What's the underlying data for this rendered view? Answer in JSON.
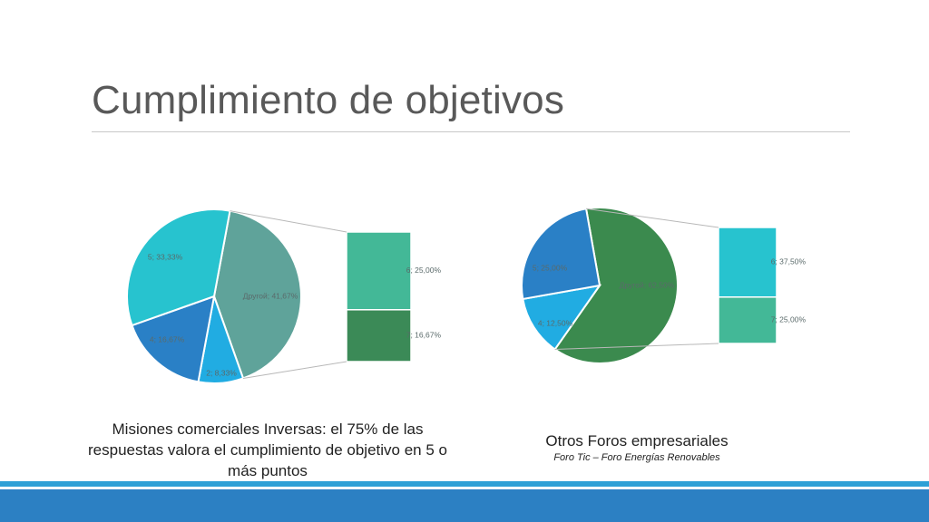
{
  "slide": {
    "title": "Cumplimiento de objetivos",
    "caption_left": "Misiones comerciales Inversas: el 75% de las respuestas valora el cumplimiento de objetivo en 5 o más puntos",
    "caption_right_main": "Otros Foros empresariales",
    "caption_right_sub": "Foro Tic – Foro Energías Renovables"
  },
  "colors": {
    "footer_bar": "#2c80c3",
    "footer_thin": "#2ea0d6"
  },
  "chart_data": [
    {
      "type": "pie",
      "subtype": "pie-of-pie",
      "main_slices": [
        {
          "label": "Другой; 41,67%",
          "value": 41.67,
          "color": "#5fa39a"
        },
        {
          "label": "2; 8,33%",
          "value": 8.33,
          "color": "#21ace2"
        },
        {
          "label": "4; 16,67%",
          "value": 16.67,
          "color": "#2a80c6"
        },
        {
          "label": "5; 33,33%",
          "value": 33.33,
          "color": "#27c3cf"
        }
      ],
      "secondary_slices": [
        {
          "label": "6; 25,00%",
          "value": 25.0,
          "color": "#43b897"
        },
        {
          "label": "7; 16,67%",
          "value": 16.67,
          "color": "#3b8a57"
        }
      ]
    },
    {
      "type": "pie",
      "subtype": "pie-of-pie",
      "main_slices": [
        {
          "label": "Другой; 62,50%",
          "value": 62.5,
          "color": "#3b8a4e"
        },
        {
          "label": "4; 12,50%",
          "value": 12.5,
          "color": "#21ace2"
        },
        {
          "label": "5; 25,00%",
          "value": 25.0,
          "color": "#2a80c6"
        }
      ],
      "secondary_slices": [
        {
          "label": "6; 37,50%",
          "value": 37.5,
          "color": "#27c3cf"
        },
        {
          "label": "7; 25,00%",
          "value": 25.0,
          "color": "#43b897"
        }
      ]
    }
  ]
}
